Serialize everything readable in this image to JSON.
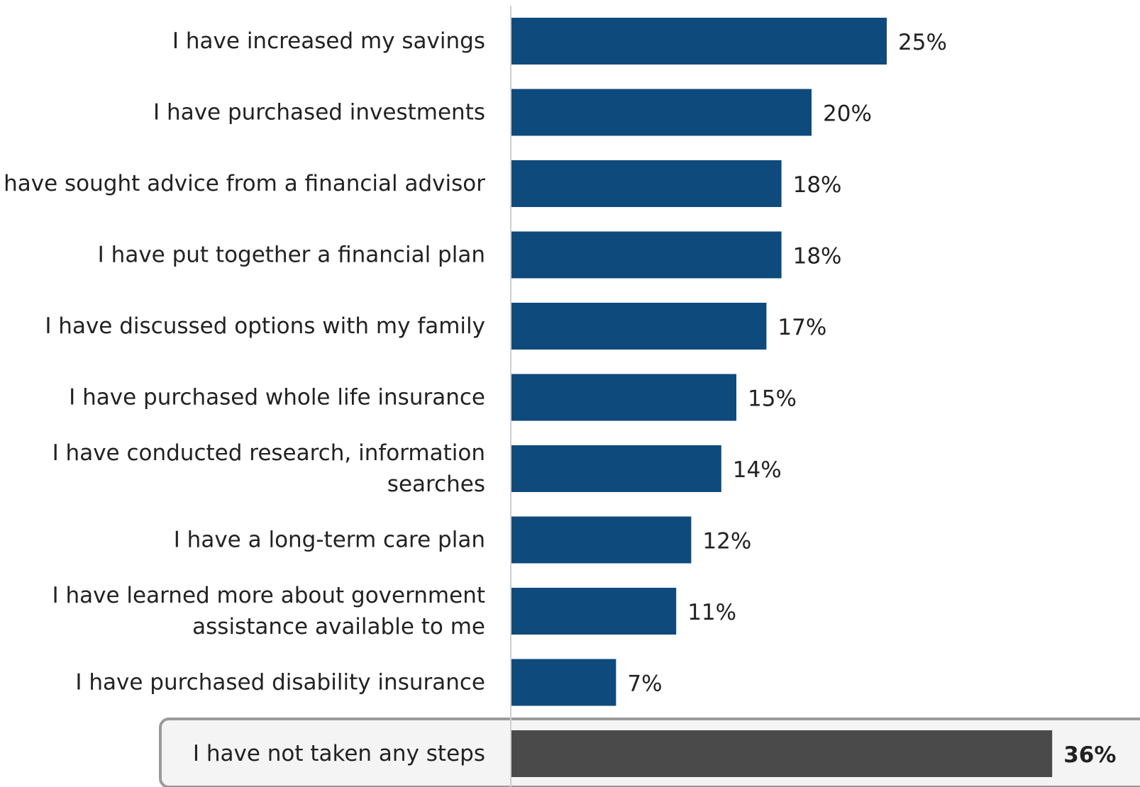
{
  "chart_data": {
    "type": "bar",
    "orientation": "horizontal",
    "title": "",
    "xlabel": "",
    "ylabel": "",
    "xlim": [
      0,
      38
    ],
    "grid": false,
    "legend": "none",
    "value_suffix": "%",
    "bars": [
      {
        "label": [
          "I have increased my savings"
        ],
        "value": 25,
        "color": "#0f4a7c",
        "highlight": false
      },
      {
        "label": [
          "I have purchased investments"
        ],
        "value": 20,
        "color": "#0f4a7c",
        "highlight": false
      },
      {
        "label": [
          "I have sought advice from a financial advisor"
        ],
        "value": 18,
        "color": "#0f4a7c",
        "highlight": false
      },
      {
        "label": [
          "I have put together a financial plan"
        ],
        "value": 18,
        "color": "#0f4a7c",
        "highlight": false
      },
      {
        "label": [
          "I have discussed options with my family"
        ],
        "value": 17,
        "color": "#0f4a7c",
        "highlight": false
      },
      {
        "label": [
          "I have purchased whole life insurance"
        ],
        "value": 15,
        "color": "#0f4a7c",
        "highlight": false
      },
      {
        "label": [
          "I have conducted research, information",
          "searches"
        ],
        "value": 14,
        "color": "#0f4a7c",
        "highlight": false
      },
      {
        "label": [
          "I have a long-term care plan"
        ],
        "value": 12,
        "color": "#0f4a7c",
        "highlight": false
      },
      {
        "label": [
          "I have learned more about government",
          "assistance available to me"
        ],
        "value": 11,
        "color": "#0f4a7c",
        "highlight": false
      },
      {
        "label": [
          "I have purchased disability insurance"
        ],
        "value": 7,
        "color": "#0f4a7c",
        "highlight": false
      },
      {
        "label": [
          "I have not taken any steps"
        ],
        "value": 36,
        "color": "#4a4a4a",
        "highlight": true
      }
    ],
    "colors": {
      "primary": "#0f4a7c",
      "highlight": "#4a4a4a",
      "highlight_box_fill": "#f4f4f4",
      "highlight_box_stroke": "#9a9a9a",
      "axis": "#cfcfcf"
    }
  }
}
